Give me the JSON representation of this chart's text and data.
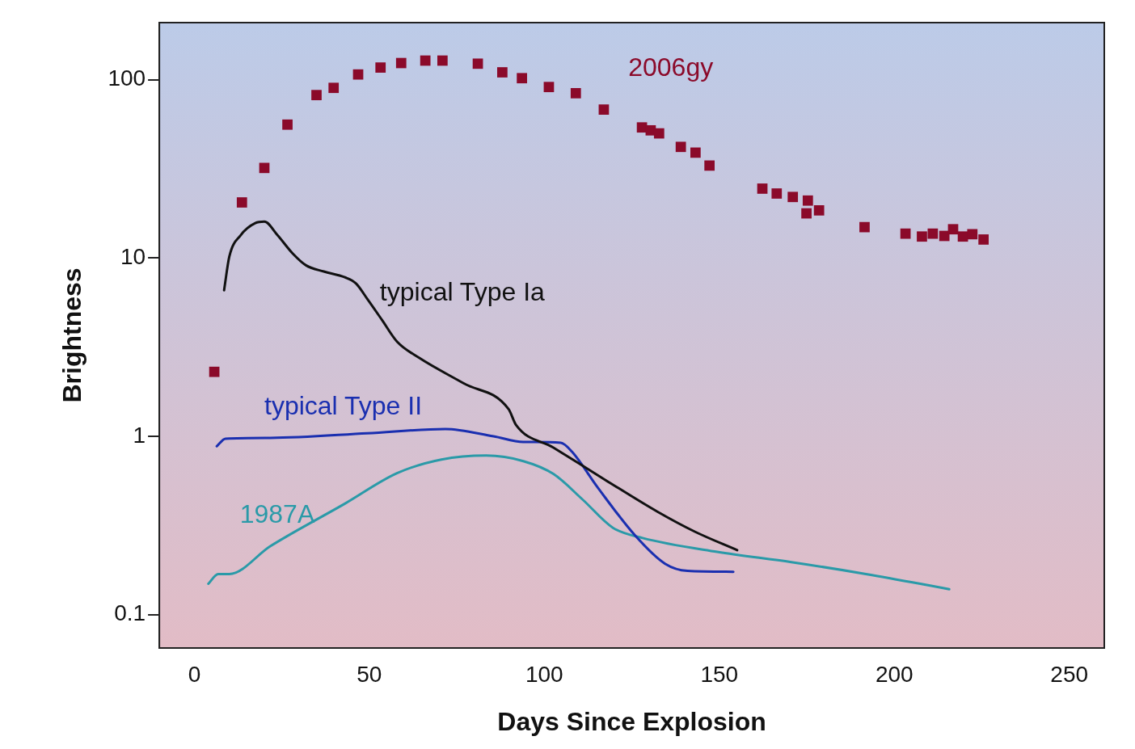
{
  "chart_data": {
    "type": "line",
    "xlabel": "Days Since Explosion",
    "ylabel": "Brightness",
    "log": "y",
    "grid": false,
    "legend": false,
    "xlim": [
      -10,
      260
    ],
    "xticks": [
      0,
      50,
      100,
      150,
      200,
      250
    ],
    "ylim": [
      0.065,
      209
    ],
    "yticks": [
      0.1,
      1,
      10,
      100
    ],
    "series": [
      {
        "name": "2006gy",
        "type": "scatter",
        "marker": "square",
        "color": "#8b0a2a",
        "x": [
          5.7,
          13.6,
          20,
          26.6,
          34.9,
          39.8,
          46.8,
          53.2,
          59.1,
          66,
          70.9,
          81,
          88,
          93.6,
          101.3,
          109,
          117,
          127.9,
          130.4,
          132.8,
          139,
          143.2,
          147.2,
          162.3,
          166.4,
          171,
          175.3,
          174.9,
          178.5,
          191.5,
          203.2,
          207.9,
          211,
          214.3,
          216.8,
          219.6,
          222.3,
          225.5
        ],
        "values": [
          2.3,
          20.5,
          32,
          56,
          82,
          90,
          107,
          117,
          124,
          128,
          128,
          123,
          110,
          102,
          91,
          84,
          68,
          54,
          52,
          50,
          42,
          39,
          33,
          24.5,
          23,
          22,
          21,
          17.8,
          18.5,
          14.9,
          13.7,
          13.2,
          13.7,
          13.3,
          14.5,
          13.2,
          13.6,
          12.7
        ]
      },
      {
        "name": "typical Type Ia",
        "type": "line",
        "marker": "none",
        "color": "#111111",
        "x": [
          8.5,
          10,
          13.2,
          17.4,
          20,
          23.8,
          28.1,
          31.9,
          37,
          43,
          46.2,
          49.4,
          53.6,
          57.9,
          64.3,
          77,
          89.8,
          91.9,
          102.6,
          117.4,
          132.3,
          143,
          155.1
        ],
        "values": [
          6.6,
          10.2,
          13.4,
          15.7,
          16,
          13.4,
          10.6,
          9.1,
          8.4,
          7.8,
          7.2,
          5.9,
          4.5,
          3.4,
          2.75,
          1.98,
          1.42,
          1.16,
          0.865,
          0.57,
          0.378,
          0.292,
          0.23
        ]
      },
      {
        "name": "typical Type II",
        "type": "line",
        "marker": "none",
        "color": "#1a2fb0",
        "x": [
          6.4,
          8.9,
          21.7,
          49.4,
          71.7,
          85.5,
          94,
          104.7,
          107.9,
          115.3,
          126,
          134.5,
          140.9,
          154
        ],
        "values": [
          0.88,
          0.97,
          0.98,
          1.04,
          1.1,
          1.0,
          0.93,
          0.92,
          0.82,
          0.515,
          0.277,
          0.193,
          0.176,
          0.174
        ]
      },
      {
        "name": "1987A",
        "type": "line",
        "marker": "none",
        "color": "#2a9aa8",
        "x": [
          4,
          6.8,
          10,
          21.7,
          43,
          57.9,
          70.6,
          83.4,
          94,
          102.6,
          111,
          119.6,
          128.1,
          149.4,
          170.6,
          191.9,
          215.7
        ],
        "values": [
          0.149,
          0.169,
          0.169,
          0.242,
          0.419,
          0.621,
          0.741,
          0.78,
          0.726,
          0.615,
          0.441,
          0.307,
          0.269,
          0.225,
          0.197,
          0.169,
          0.139
        ]
      }
    ]
  }
}
